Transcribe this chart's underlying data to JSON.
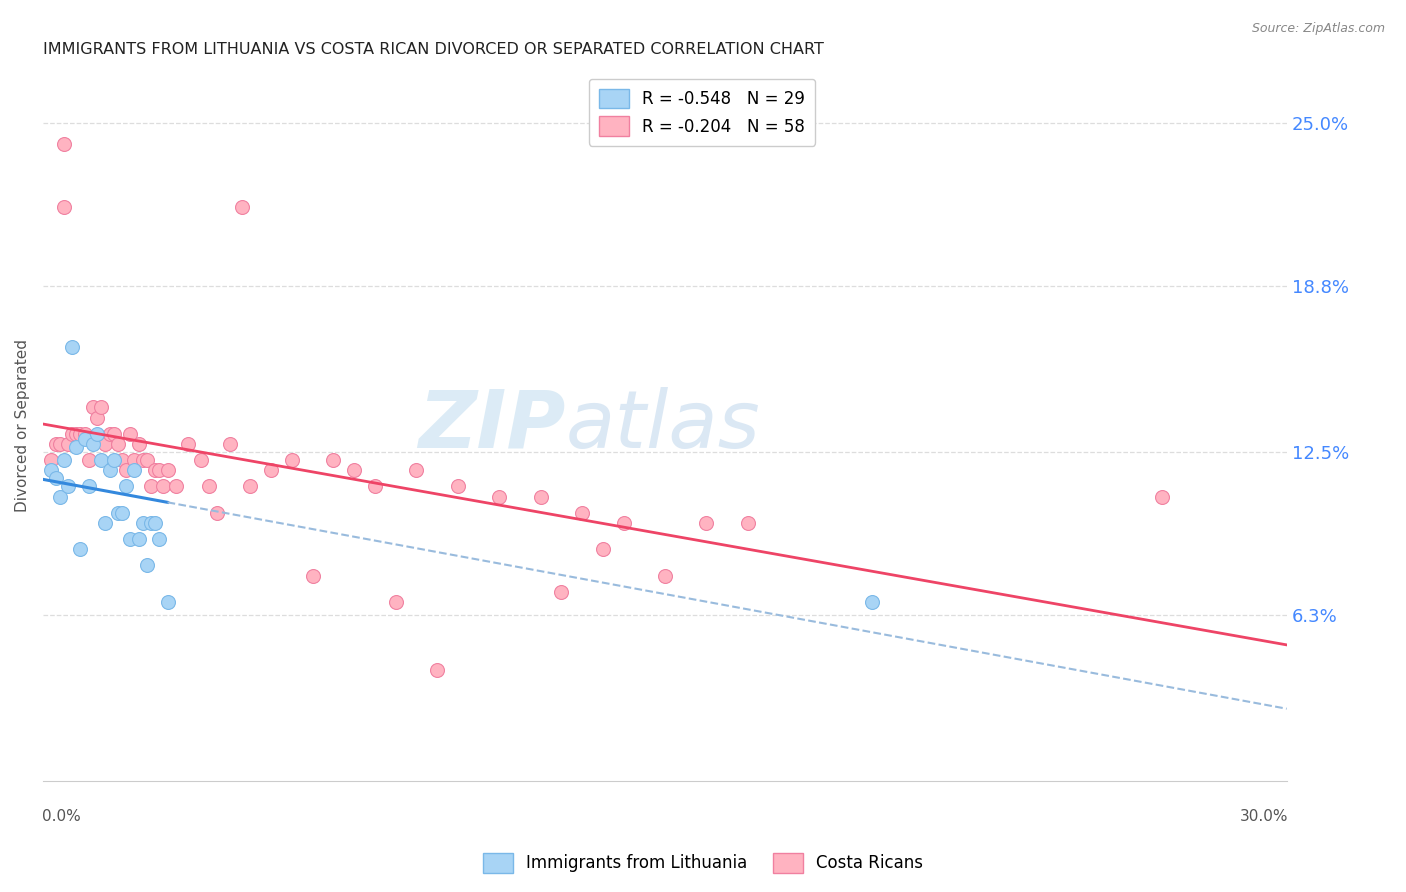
{
  "title": "IMMIGRANTS FROM LITHUANIA VS COSTA RICAN DIVORCED OR SEPARATED CORRELATION CHART",
  "source": "Source: ZipAtlas.com",
  "ylabel": "Divorced or Separated",
  "ytick_vals": [
    0.063,
    0.125,
    0.188,
    0.25
  ],
  "ytick_labels": [
    "6.3%",
    "12.5%",
    "18.8%",
    "25.0%"
  ],
  "xmin": 0.0,
  "xmax": 0.3,
  "ymin": 0.0,
  "ymax": 0.27,
  "watermark_zip": "ZIP",
  "watermark_atlas": "atlas",
  "legend_label1": "Immigrants from Lithuania",
  "legend_label2": "Costa Ricans",
  "blue_R": -0.548,
  "blue_N": 29,
  "pink_R": -0.204,
  "pink_N": 58,
  "blue_scatter_x": [
    0.002,
    0.003,
    0.004,
    0.005,
    0.006,
    0.007,
    0.008,
    0.009,
    0.01,
    0.011,
    0.012,
    0.013,
    0.014,
    0.015,
    0.016,
    0.017,
    0.018,
    0.019,
    0.02,
    0.021,
    0.022,
    0.023,
    0.024,
    0.025,
    0.026,
    0.027,
    0.028,
    0.03,
    0.2
  ],
  "blue_scatter_y": [
    0.118,
    0.115,
    0.108,
    0.122,
    0.112,
    0.165,
    0.127,
    0.088,
    0.13,
    0.112,
    0.128,
    0.132,
    0.122,
    0.098,
    0.118,
    0.122,
    0.102,
    0.102,
    0.112,
    0.092,
    0.118,
    0.092,
    0.098,
    0.082,
    0.098,
    0.098,
    0.092,
    0.068,
    0.068
  ],
  "pink_scatter_x": [
    0.002,
    0.003,
    0.004,
    0.005,
    0.006,
    0.007,
    0.008,
    0.009,
    0.01,
    0.011,
    0.012,
    0.013,
    0.014,
    0.015,
    0.016,
    0.017,
    0.018,
    0.019,
    0.02,
    0.021,
    0.022,
    0.023,
    0.024,
    0.025,
    0.026,
    0.027,
    0.028,
    0.029,
    0.03,
    0.032,
    0.035,
    0.038,
    0.04,
    0.042,
    0.045,
    0.048,
    0.05,
    0.055,
    0.06,
    0.065,
    0.07,
    0.075,
    0.08,
    0.085,
    0.09,
    0.095,
    0.1,
    0.11,
    0.12,
    0.125,
    0.13,
    0.135,
    0.14,
    0.15,
    0.16,
    0.17,
    0.27,
    0.005
  ],
  "pink_scatter_y": [
    0.122,
    0.128,
    0.128,
    0.242,
    0.128,
    0.132,
    0.132,
    0.132,
    0.132,
    0.122,
    0.142,
    0.138,
    0.142,
    0.128,
    0.132,
    0.132,
    0.128,
    0.122,
    0.118,
    0.132,
    0.122,
    0.128,
    0.122,
    0.122,
    0.112,
    0.118,
    0.118,
    0.112,
    0.118,
    0.112,
    0.128,
    0.122,
    0.112,
    0.102,
    0.128,
    0.218,
    0.112,
    0.118,
    0.122,
    0.078,
    0.122,
    0.118,
    0.112,
    0.068,
    0.118,
    0.042,
    0.112,
    0.108,
    0.108,
    0.072,
    0.102,
    0.088,
    0.098,
    0.078,
    0.098,
    0.098,
    0.108,
    0.218
  ],
  "background_color": "#ffffff",
  "grid_color": "#dddddd",
  "title_color": "#222222",
  "blue_scatter_color": "#a8d4f5",
  "blue_scatter_edge": "#7ab8e8",
  "pink_scatter_color": "#ffb3c1",
  "pink_scatter_edge": "#f080a0",
  "blue_line_color": "#3388dd",
  "blue_dash_color": "#99bbdd",
  "pink_line_color": "#ee4466",
  "right_axis_color": "#4488ff",
  "marker_size": 100
}
